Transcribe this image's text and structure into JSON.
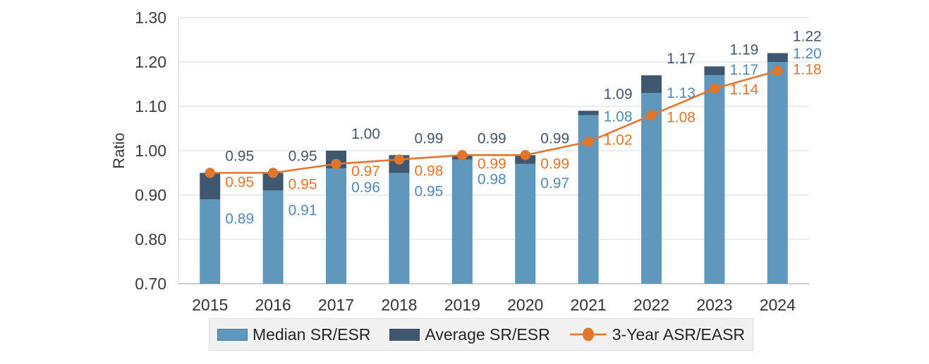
{
  "chart_data": {
    "type": "bar",
    "subtype": "stacked bars with line overlay",
    "title": "",
    "ylabel": "Ratio",
    "ylim": [
      0.7,
      1.3
    ],
    "ytick_step": 0.1,
    "ytick_labels": [
      "0.70",
      "0.80",
      "0.90",
      "1.00",
      "1.10",
      "1.20",
      "1.30"
    ],
    "grid": true,
    "legend_position": "bottom",
    "categories": [
      "2015",
      "2016",
      "2017",
      "2018",
      "2019",
      "2020",
      "2021",
      "2022",
      "2023",
      "2024"
    ],
    "series": [
      {
        "name": "Median SR/ESR",
        "type": "bar",
        "color": "#6097bd",
        "label_color": "#5089ba",
        "values": [
          0.89,
          0.91,
          0.96,
          0.95,
          0.98,
          0.97,
          1.08,
          1.13,
          1.17,
          1.2
        ]
      },
      {
        "name": "Average SR/ESR",
        "type": "bar",
        "color": "#3f5870",
        "label_color": "#44546a",
        "values": [
          0.95,
          0.95,
          1.0,
          0.99,
          0.99,
          0.99,
          1.09,
          1.17,
          1.19,
          1.22
        ]
      },
      {
        "name": "3-Year ASR/EASR",
        "type": "line",
        "color": "#e0752c",
        "label_color": "#e0752c",
        "values": [
          0.95,
          0.95,
          0.97,
          0.98,
          0.99,
          0.99,
          1.02,
          1.08,
          1.14,
          1.18
        ]
      }
    ],
    "colors": {
      "gridline": "#e0e0e0",
      "axis_line": "#bdbdbd",
      "plot_border": "#d9d9d9",
      "axis_text": "#3c3c3c",
      "legend_bg": "#f1f1f1"
    }
  }
}
